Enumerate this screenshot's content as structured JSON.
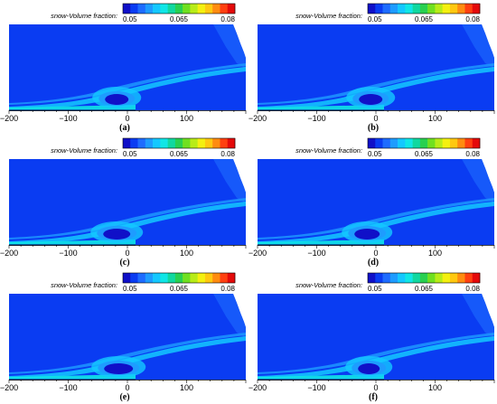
{
  "chart_data": [
    {
      "type": "heatmap",
      "panel_label": "(a)",
      "colorbar": {
        "label": "snow-Volume fraction:",
        "ticks": [
          "0.05",
          "0.065",
          "0.08"
        ],
        "range": [
          0.05,
          0.08
        ]
      },
      "x_ticks": [
        "-200",
        "-100",
        "0",
        "100"
      ],
      "xlim": [
        -200,
        200
      ]
    },
    {
      "type": "heatmap",
      "panel_label": "(b)",
      "colorbar": {
        "label": "snow-Volume fraction:",
        "ticks": [
          "0.05",
          "0.065",
          "0.08"
        ],
        "range": [
          0.05,
          0.08
        ]
      },
      "x_ticks": [
        "-200",
        "-100",
        "0",
        "100"
      ],
      "xlim": [
        -200,
        200
      ]
    },
    {
      "type": "heatmap",
      "panel_label": "(c)",
      "colorbar": {
        "label": "snow-Volume fraction:",
        "ticks": [
          "0.05",
          "0.065",
          "0.08"
        ],
        "range": [
          0.05,
          0.08
        ]
      },
      "x_ticks": [
        "-200",
        "-100",
        "0",
        "100"
      ],
      "xlim": [
        -200,
        200
      ]
    },
    {
      "type": "heatmap",
      "panel_label": "(d)",
      "colorbar": {
        "label": "snow-Volume fraction:",
        "ticks": [
          "0.05",
          "0.065",
          "0.08"
        ],
        "range": [
          0.05,
          0.08
        ]
      },
      "x_ticks": [
        "-200",
        "-100",
        "0",
        "100"
      ],
      "xlim": [
        -200,
        200
      ]
    },
    {
      "type": "heatmap",
      "panel_label": "(e)",
      "colorbar": {
        "label": "snow-Volume fraction:",
        "ticks": [
          "0.05",
          "0.065",
          "0.08"
        ],
        "range": [
          0.05,
          0.08
        ]
      },
      "x_ticks": [
        "-200",
        "-100",
        "0",
        "100"
      ],
      "xlim": [
        -200,
        200
      ]
    },
    {
      "type": "heatmap",
      "panel_label": "(f)",
      "colorbar": {
        "label": "snow-Volume fraction:",
        "ticks": [
          "0.05",
          "0.065",
          "0.08"
        ],
        "range": [
          0.05,
          0.08
        ]
      },
      "x_ticks": [
        "-200",
        "-100",
        "0",
        "100"
      ],
      "xlim": [
        -200,
        200
      ]
    }
  ],
  "colors": {
    "field_background": "#0a3cf2",
    "colormap": [
      "#1010c8",
      "#0a3cf2",
      "#1e6cff",
      "#1e9cff",
      "#14c8ff",
      "#10e6e6",
      "#10d8a0",
      "#28d050",
      "#70e020",
      "#b8ec18",
      "#f4f010",
      "#ffc810",
      "#ff8c10",
      "#ff4010",
      "#e40a0a"
    ]
  }
}
